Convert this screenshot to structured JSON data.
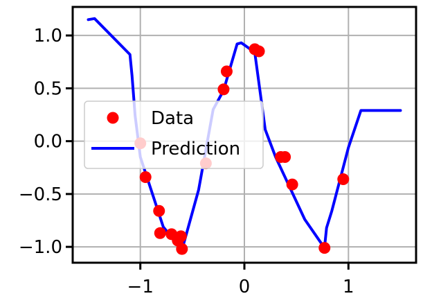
{
  "chart_data": {
    "type": "scatter",
    "title": "",
    "xlabel": "",
    "ylabel": "",
    "xlim": [
      -1.65,
      1.65
    ],
    "ylim": [
      -1.15,
      1.27
    ],
    "xticks": [
      -1,
      0,
      1
    ],
    "xtick_labels": [
      "−1",
      "0",
      "1"
    ],
    "yticks": [
      -1.0,
      -0.5,
      0.0,
      0.5,
      1.0
    ],
    "ytick_labels": [
      "−1.0",
      "−0.5",
      "0.0",
      "0.5",
      "1.0"
    ],
    "grid": true,
    "legend_position": "center-left",
    "series": [
      {
        "name": "Data",
        "kind": "scatter",
        "color": "#ff0000",
        "x": [
          -1.0,
          -0.95,
          -0.82,
          -0.81,
          -0.7,
          -0.64,
          -0.61,
          -0.6,
          -0.37,
          -0.2,
          -0.17,
          0.1,
          0.14,
          0.35,
          0.39,
          0.46,
          0.77,
          0.95
        ],
        "y": [
          -0.02,
          -0.34,
          -0.66,
          -0.87,
          -0.88,
          -0.94,
          -0.9,
          -1.02,
          -0.21,
          0.49,
          0.66,
          0.87,
          0.85,
          -0.15,
          -0.15,
          -0.41,
          -1.01,
          -0.36
        ]
      },
      {
        "name": "Prediction",
        "kind": "line",
        "color": "#0000ff",
        "x": [
          -1.5,
          -1.44,
          -1.1,
          -1.08,
          -1.05,
          -1.0,
          -0.78,
          -0.6,
          -0.44,
          -0.3,
          -0.2,
          -0.07,
          -0.03,
          0.0,
          0.1,
          0.2,
          0.3,
          0.58,
          0.77,
          0.79,
          0.84,
          1.0,
          1.12,
          1.18,
          1.5
        ],
        "y": [
          1.15,
          1.16,
          0.82,
          0.62,
          0.24,
          -0.15,
          -0.81,
          -1.03,
          -0.46,
          0.3,
          0.48,
          0.92,
          0.93,
          0.91,
          0.84,
          0.11,
          -0.15,
          -0.74,
          -1.01,
          -0.82,
          -0.66,
          -0.06,
          0.29,
          0.29,
          0.29
        ]
      }
    ]
  }
}
